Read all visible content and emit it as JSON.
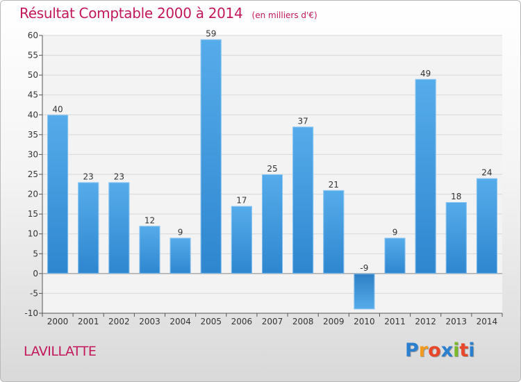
{
  "chart_data": {
    "type": "bar",
    "title": "Résultat Comptable 2000 à 2014",
    "unit": "(en milliers d'€)",
    "categories": [
      "2000",
      "2001",
      "2002",
      "2003",
      "2004",
      "2005",
      "2006",
      "2007",
      "2008",
      "2009",
      "2010",
      "2011",
      "2012",
      "2013",
      "2014"
    ],
    "values": [
      40,
      23,
      23,
      12,
      9,
      59,
      17,
      25,
      37,
      21,
      -9,
      9,
      49,
      18,
      24
    ],
    "data_labels": [
      "40",
      "23",
      "23",
      "12",
      "9",
      "59",
      "17",
      "25",
      "37",
      "21",
      "-9",
      "9",
      "49",
      "18",
      "24"
    ],
    "ylim": [
      -10,
      60
    ],
    "yticks": [
      -10,
      -5,
      0,
      5,
      10,
      15,
      20,
      25,
      30,
      35,
      40,
      45,
      50,
      55,
      60
    ],
    "grid": true,
    "xlabel": "",
    "ylabel": "",
    "bar_color": "#2e86cf",
    "bar_color_light": "#56acea"
  },
  "place": "LAVILLATTE",
  "logo": {
    "letters": [
      "P",
      "r",
      "o",
      "x",
      "i",
      "t",
      "i"
    ],
    "colors": [
      "#2a7fcf",
      "#f29a1f",
      "#e8472a",
      "#2a7fcf",
      "#7ab929",
      "#e8472a",
      "#2a7fcf"
    ]
  }
}
